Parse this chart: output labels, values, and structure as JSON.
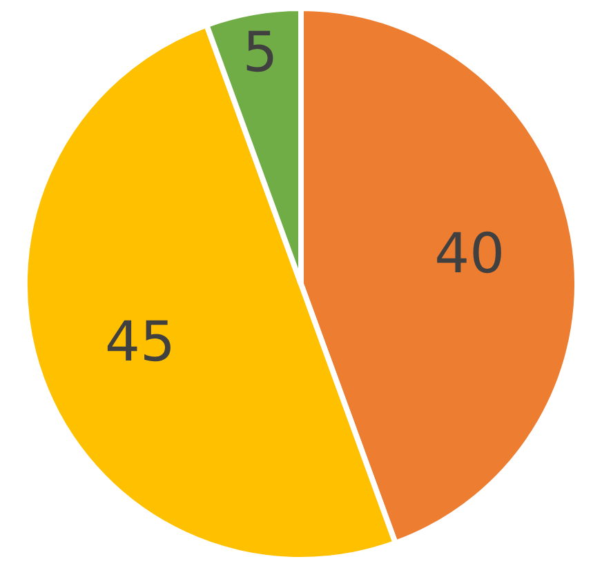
{
  "chart_data": {
    "type": "pie",
    "categories": [
      null,
      null,
      null
    ],
    "values": [
      40,
      45,
      5
    ],
    "colors": [
      "#ed7d31",
      "#ffc000",
      "#70ad47"
    ],
    "data_labels": true
  }
}
